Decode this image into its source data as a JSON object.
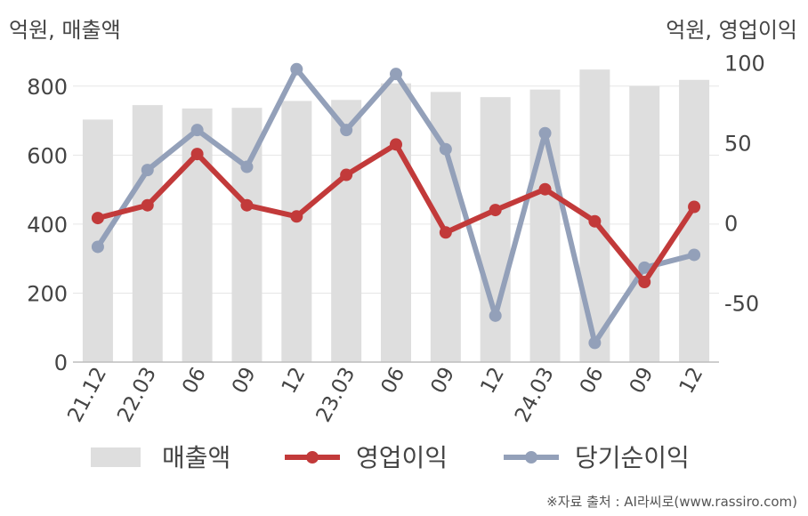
{
  "units": {
    "left": "억원, 매출액",
    "right": "억원, 영업이익"
  },
  "source": "※자료 출처 : AI라씨로(www.rassiro.com)",
  "colors": {
    "revenue": "#dedede",
    "operating": "#c23a3a",
    "net": "#93a0b9",
    "grid": "#e6e6e6",
    "axis": "#bdbdbd"
  },
  "chart_data": {
    "type": "bar",
    "categories": [
      "21.12",
      "22.03",
      "06",
      "09",
      "12",
      "23.03",
      "06",
      "09",
      "12",
      "24.03",
      "06",
      "09",
      "12"
    ],
    "ylim_left": [
      0,
      900
    ],
    "yticks_left": [
      0,
      200,
      400,
      600,
      800
    ],
    "ylim_right": [
      -87,
      107
    ],
    "yticks_right": [
      -50,
      0,
      50,
      100
    ],
    "series": [
      {
        "name": "매출액",
        "type": "bar",
        "axis": "left",
        "values": [
          703,
          745,
          735,
          737,
          757,
          760,
          808,
          783,
          768,
          790,
          848,
          800,
          818
        ]
      },
      {
        "name": "영업이익",
        "type": "line",
        "axis": "right",
        "values": [
          3,
          11,
          43,
          11,
          4,
          30,
          49,
          -6,
          8,
          21,
          1,
          -37,
          10
        ]
      },
      {
        "name": "당기순이익",
        "type": "line",
        "axis": "right",
        "values": [
          -15,
          33,
          58,
          35,
          96,
          58,
          93,
          46,
          -58,
          56,
          -75,
          -28,
          -20
        ]
      }
    ]
  }
}
